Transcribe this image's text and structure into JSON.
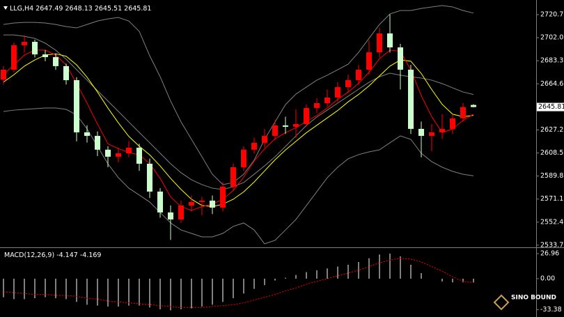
{
  "chart_data": {
    "type": "candlestick",
    "symbol": "LLG,H4",
    "up_color": "#ff0000",
    "down_color": "#ccffcc",
    "ylim": [
      2532,
      2731.5
    ],
    "yticks": [
      2720.75,
      2702.05,
      2683.35,
      2664.65,
      2627.25,
      2608.55,
      2589.85,
      2571.15,
      2552.45,
      2533.75
    ],
    "open": [
      2668.0,
      2676.1,
      2695.9,
      2698.7,
      2688.5,
      2686.3,
      2679.0,
      2667.6,
      2625.3,
      2622.4,
      2611.2,
      2605.5,
      2608.3,
      2612.8,
      2599.8,
      2577.2,
      2560.3,
      2554.6,
      2565.9,
      2568.8,
      2569.9,
      2564.2,
      2581.2,
      2597.0,
      2611.2,
      2616.8,
      2622.4,
      2630.9,
      2629.8,
      2632.0,
      2645.0,
      2649.0,
      2653.5,
      2662.0,
      2667.6,
      2676.1,
      2690.2,
      2705.5,
      2694.2,
      2676.1,
      2628.1,
      2622.4,
      2625.3,
      2628.1,
      2636.6,
      2647.49
    ],
    "high": [
      2679.0,
      2698.0,
      2704.0,
      2700.5,
      2692.0,
      2689.0,
      2681.0,
      2670.0,
      2631.0,
      2626.0,
      2614.0,
      2613.0,
      2618.0,
      2616.0,
      2604.0,
      2580.0,
      2566.0,
      2570.0,
      2574.0,
      2573.0,
      2574.0,
      2585.0,
      2600.0,
      2614.0,
      2621.0,
      2628.0,
      2635.0,
      2638.0,
      2644.0,
      2648.0,
      2653.0,
      2660.0,
      2666.0,
      2672.0,
      2680.0,
      2700.0,
      2710.0,
      2721.0,
      2697.0,
      2680.0,
      2634.0,
      2632.0,
      2640.0,
      2640.0,
      2649.0,
      2648.13
    ],
    "low": [
      2664.0,
      2674.0,
      2690.0,
      2686.0,
      2683.0,
      2676.0,
      2664.0,
      2618.0,
      2617.0,
      2606.0,
      2597.0,
      2601.0,
      2605.0,
      2594.0,
      2572.0,
      2556.0,
      2538.0,
      2552.0,
      2561.0,
      2558.0,
      2559.0,
      2561.0,
      2578.0,
      2594.0,
      2608.0,
      2613.0,
      2619.0,
      2624.0,
      2621.0,
      2630.0,
      2641.0,
      2646.0,
      2650.0,
      2657.0,
      2664.0,
      2672.0,
      2686.0,
      2690.0,
      2660.0,
      2624.0,
      2605.0,
      2610.0,
      2620.0,
      2624.0,
      2634.0,
      2645.51
    ],
    "close": [
      2676.1,
      2695.9,
      2698.7,
      2688.5,
      2686.3,
      2679.0,
      2667.6,
      2625.3,
      2622.4,
      2611.2,
      2605.5,
      2608.3,
      2612.8,
      2599.8,
      2577.2,
      2560.3,
      2554.6,
      2565.9,
      2568.8,
      2569.9,
      2564.2,
      2581.2,
      2597.0,
      2611.2,
      2616.8,
      2622.4,
      2630.9,
      2629.8,
      2632.0,
      2645.0,
      2649.0,
      2653.5,
      2662.0,
      2667.6,
      2676.1,
      2690.2,
      2705.5,
      2694.2,
      2676.1,
      2628.1,
      2622.4,
      2625.3,
      2628.1,
      2636.6,
      2645.8,
      2645.81
    ],
    "overlays": [
      {
        "color": "#808080",
        "values": [
          2712.8,
          2714.0,
          2714.5,
          2714.5,
          2714.0,
          2712.8,
          2711.1,
          2710.0,
          2712.8,
          2715.6,
          2717.3,
          2718.5,
          2715.6,
          2707.2,
          2687.4,
          2670.4,
          2650.7,
          2633.7,
          2619.6,
          2605.5,
          2591.3,
          2582.9,
          2584.6,
          2591.3,
          2602.7,
          2619.6,
          2633.7,
          2647.8,
          2656.3,
          2662.0,
          2667.6,
          2671.6,
          2676.1,
          2680.6,
          2690.2,
          2701.5,
          2712.8,
          2721.3,
          2724.1,
          2724.1,
          2725.8,
          2727.0,
          2728.1,
          2727.0,
          2724.1,
          2722.0
        ]
      },
      {
        "color": "#808080",
        "values": [
          2704.3,
          2704.3,
          2703.2,
          2701.5,
          2697.6,
          2691.9,
          2684.6,
          2676.1,
          2667.6,
          2659.1,
          2650.7,
          2642.2,
          2633.7,
          2625.2,
          2616.8,
          2608.3,
          2599.8,
          2592.5,
          2586.8,
          2582.9,
          2580.0,
          2578.9,
          2581.2,
          2584.6,
          2591.3,
          2598.1,
          2605.5,
          2613.9,
          2622.4,
          2630.9,
          2637.7,
          2643.3,
          2649.0,
          2654.6,
          2660.3,
          2665.9,
          2670.4,
          2673.3,
          2671.6,
          2670.4,
          2669.3,
          2667.6,
          2664.8,
          2661.4,
          2658.0,
          2656.0
        ]
      },
      {
        "color": "#808080",
        "values": [
          2642.2,
          2643.3,
          2643.9,
          2644.5,
          2645.0,
          2645.0,
          2643.9,
          2639.4,
          2628.1,
          2613.9,
          2599.8,
          2588.5,
          2580.0,
          2574.4,
          2568.7,
          2560.3,
          2551.8,
          2546.1,
          2543.3,
          2540.5,
          2540.5,
          2543.3,
          2549.0,
          2551.8,
          2546.1,
          2534.8,
          2537.7,
          2546.1,
          2554.6,
          2565.9,
          2577.2,
          2588.5,
          2597.0,
          2603.8,
          2607.2,
          2609.4,
          2611.1,
          2616.8,
          2622.4,
          2619.6,
          2608.3,
          2601.5,
          2597.0,
          2593.6,
          2591.3,
          2590.0
        ]
      },
      {
        "color": "#ffff00",
        "values": [
          2666,
          2672,
          2679,
          2684,
          2688,
          2689,
          2687,
          2680,
          2670,
          2658,
          2645,
          2633,
          2622,
          2614,
          2607,
          2598,
          2588,
          2579,
          2571,
          2566,
          2565,
          2567,
          2571,
          2577,
          2585,
          2594,
          2603,
          2611,
          2618,
          2625,
          2631,
          2637,
          2643,
          2650,
          2656,
          2663,
          2671,
          2679,
          2684,
          2683,
          2673,
          2660,
          2648,
          2640,
          2638,
          2639
        ]
      },
      {
        "color": "#ff0000",
        "values": [
          2672,
          2680,
          2688,
          2692,
          2692,
          2688,
          2680,
          2665,
          2649,
          2632,
          2616,
          2612,
          2609,
          2607,
          2600,
          2588,
          2573,
          2565,
          2562,
          2565,
          2567,
          2571,
          2578,
          2589,
          2602,
          2612,
          2620,
          2625,
          2629,
          2634,
          2639,
          2645,
          2652,
          2658,
          2665,
          2674,
          2685,
          2692,
          2691,
          2676,
          2655,
          2638,
          2625,
          2628,
          2635,
          2640
        ]
      }
    ],
    "macd": {
      "title": "MACD(12,26,9)",
      "hist_color": "#ffffff",
      "signal_color": "#ff0000",
      "ylim": [
        -39,
        32.2
      ],
      "yticks": [
        26.96,
        {
          "value": 0,
          "label": "0.00"
        },
        -33.38
      ],
      "histogram": [
        -20,
        -22,
        -22,
        -21,
        -20,
        -21,
        -22,
        -25,
        -28,
        -29,
        -30,
        -30,
        -29,
        -29,
        -31,
        -33,
        -34,
        -33,
        -32,
        -30,
        -28,
        -25,
        -21,
        -16,
        -11,
        -7,
        -2,
        1,
        4,
        7,
        9,
        11,
        13,
        15,
        18,
        22,
        26,
        27,
        24,
        15,
        6,
        0,
        -3,
        -4,
        -4,
        -4.147
      ],
      "signal": [
        -14,
        -15,
        -16,
        -17,
        -17,
        -18,
        -18,
        -19,
        -21,
        -22,
        -24,
        -25,
        -26,
        -27,
        -28,
        -29,
        -30,
        -31,
        -31,
        -31,
        -30,
        -29,
        -28,
        -26,
        -23,
        -20,
        -17,
        -13,
        -10,
        -6,
        -3,
        0,
        3,
        6,
        9,
        13,
        17,
        20,
        22,
        21,
        18,
        13,
        8,
        2,
        -3,
        -4.169
      ]
    },
    "logo": "SINO BOUND"
  }
}
